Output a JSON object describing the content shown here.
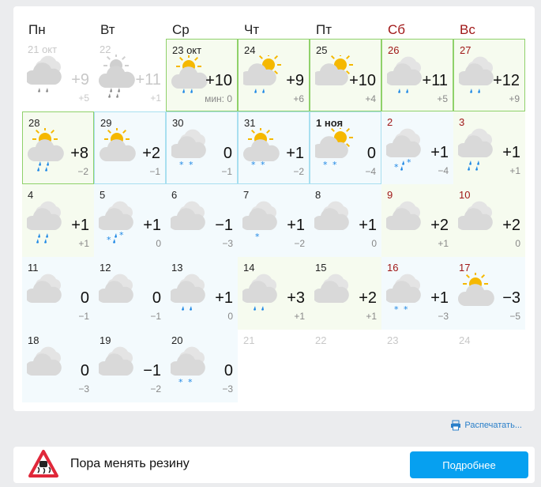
{
  "weekdays": [
    {
      "label": "Пн",
      "weekend": false
    },
    {
      "label": "Вт",
      "weekend": false
    },
    {
      "label": "Ср",
      "weekend": false
    },
    {
      "label": "Чт",
      "weekend": false
    },
    {
      "label": "Пт",
      "weekend": false
    },
    {
      "label": "Сб",
      "weekend": true
    },
    {
      "label": "Вс",
      "weekend": true
    }
  ],
  "days": [
    {
      "date": "21 окт",
      "state": "past",
      "icon": "cloud",
      "precip": "rain",
      "max": "+9",
      "min": "+5"
    },
    {
      "date": "22",
      "state": "past",
      "icon": "sun-cloud",
      "precip": "heavy-rain",
      "max": "+11",
      "min": "+1"
    },
    {
      "date": "23 окт",
      "tone": "warm",
      "border": "green",
      "icon": "sun-cloud",
      "precip": "rain",
      "max": "+10",
      "min": "мин: 0"
    },
    {
      "date": "24",
      "tone": "warm",
      "border": "green",
      "icon": "cloud-sun",
      "precip": "rain",
      "max": "+9",
      "min": "+6"
    },
    {
      "date": "25",
      "tone": "warm",
      "border": "green",
      "icon": "cloud-sun",
      "precip": "none",
      "max": "+10",
      "min": "+4"
    },
    {
      "date": "26",
      "weekend": true,
      "tone": "warm",
      "border": "green",
      "icon": "cloud",
      "precip": "rain",
      "max": "+11",
      "min": "+5"
    },
    {
      "date": "27",
      "weekend": true,
      "tone": "warm",
      "border": "green",
      "icon": "cloud",
      "precip": "rain",
      "max": "+12",
      "min": "+9"
    },
    {
      "date": "28",
      "tone": "warm",
      "border": "green",
      "icon": "sun-cloud",
      "precip": "heavy-rain",
      "max": "+8",
      "min": "−2"
    },
    {
      "date": "29",
      "tone": "cold",
      "border": "blue",
      "icon": "sun-cloud",
      "precip": "none",
      "max": "+2",
      "min": "−1"
    },
    {
      "date": "30",
      "tone": "cold",
      "border": "blue",
      "icon": "cloud",
      "precip": "snow",
      "max": "0",
      "min": "−1"
    },
    {
      "date": "31",
      "tone": "cold",
      "border": "blue",
      "icon": "sun-cloud",
      "precip": "snow",
      "max": "+1",
      "min": "−2"
    },
    {
      "date": "1 ноя",
      "bold": true,
      "tone": "cold",
      "border": "blue",
      "icon": "cloud-sun",
      "precip": "snow",
      "max": "0",
      "min": "−4"
    },
    {
      "date": "2",
      "weekend": true,
      "tone": "cold",
      "icon": "cloud",
      "precip": "mix",
      "max": "+1",
      "min": "−4"
    },
    {
      "date": "3",
      "weekend": true,
      "tone": "warm",
      "icon": "cloud",
      "precip": "heavy-rain",
      "max": "+1",
      "min": "+1"
    },
    {
      "date": "4",
      "tone": "warm",
      "icon": "cloud",
      "precip": "heavy-rain",
      "max": "+1",
      "min": "+1"
    },
    {
      "date": "5",
      "tone": "cold",
      "icon": "cloud",
      "precip": "mix",
      "max": "+1",
      "min": "0"
    },
    {
      "date": "6",
      "tone": "cold",
      "icon": "cloud",
      "precip": "none",
      "max": "−1",
      "min": "−3"
    },
    {
      "date": "7",
      "tone": "cold",
      "icon": "cloud",
      "precip": "snow1",
      "max": "+1",
      "min": "−2"
    },
    {
      "date": "8",
      "tone": "cold",
      "icon": "cloud",
      "precip": "none",
      "max": "+1",
      "min": "0"
    },
    {
      "date": "9",
      "weekend": true,
      "tone": "warm",
      "icon": "cloud",
      "precip": "none",
      "max": "+2",
      "min": "+1"
    },
    {
      "date": "10",
      "weekend": true,
      "tone": "warm",
      "icon": "cloud",
      "precip": "none",
      "max": "+2",
      "min": "0"
    },
    {
      "date": "11",
      "tone": "cold",
      "icon": "cloud",
      "precip": "none",
      "max": "0",
      "min": "−1"
    },
    {
      "date": "12",
      "tone": "cold",
      "icon": "cloud",
      "precip": "none",
      "max": "0",
      "min": "−1"
    },
    {
      "date": "13",
      "tone": "cold",
      "icon": "cloud",
      "precip": "rain",
      "max": "+1",
      "min": "0"
    },
    {
      "date": "14",
      "tone": "warm",
      "icon": "cloud",
      "precip": "rain",
      "max": "+3",
      "min": "+1"
    },
    {
      "date": "15",
      "tone": "warm",
      "icon": "cloud",
      "precip": "none",
      "max": "+2",
      "min": "+1"
    },
    {
      "date": "16",
      "weekend": true,
      "tone": "cold",
      "icon": "cloud",
      "precip": "snow",
      "max": "+1",
      "min": "−3"
    },
    {
      "date": "17",
      "weekend": true,
      "tone": "cold",
      "icon": "sun-cloud",
      "precip": "none",
      "max": "−3",
      "min": "−5"
    },
    {
      "date": "18",
      "tone": "cold",
      "icon": "cloud",
      "precip": "none",
      "max": "0",
      "min": "−3"
    },
    {
      "date": "19",
      "tone": "cold",
      "icon": "cloud",
      "precip": "none",
      "max": "−1",
      "min": "−2"
    },
    {
      "date": "20",
      "tone": "cold",
      "icon": "cloud",
      "precip": "snow",
      "max": "0",
      "min": "−3"
    },
    {
      "date": "21",
      "state": "future"
    },
    {
      "date": "22",
      "state": "future"
    },
    {
      "date": "23",
      "state": "future"
    },
    {
      "date": "24",
      "state": "future"
    }
  ],
  "print_label": "Распечатать...",
  "banner": {
    "text": "Пора менять резину",
    "button": "Подробнее"
  },
  "colors": {
    "accent": "#06a0f0",
    "weekend": "#a01818",
    "link": "#2a7fc9",
    "rain": "#1e88e5",
    "sun": "#f5b800"
  }
}
